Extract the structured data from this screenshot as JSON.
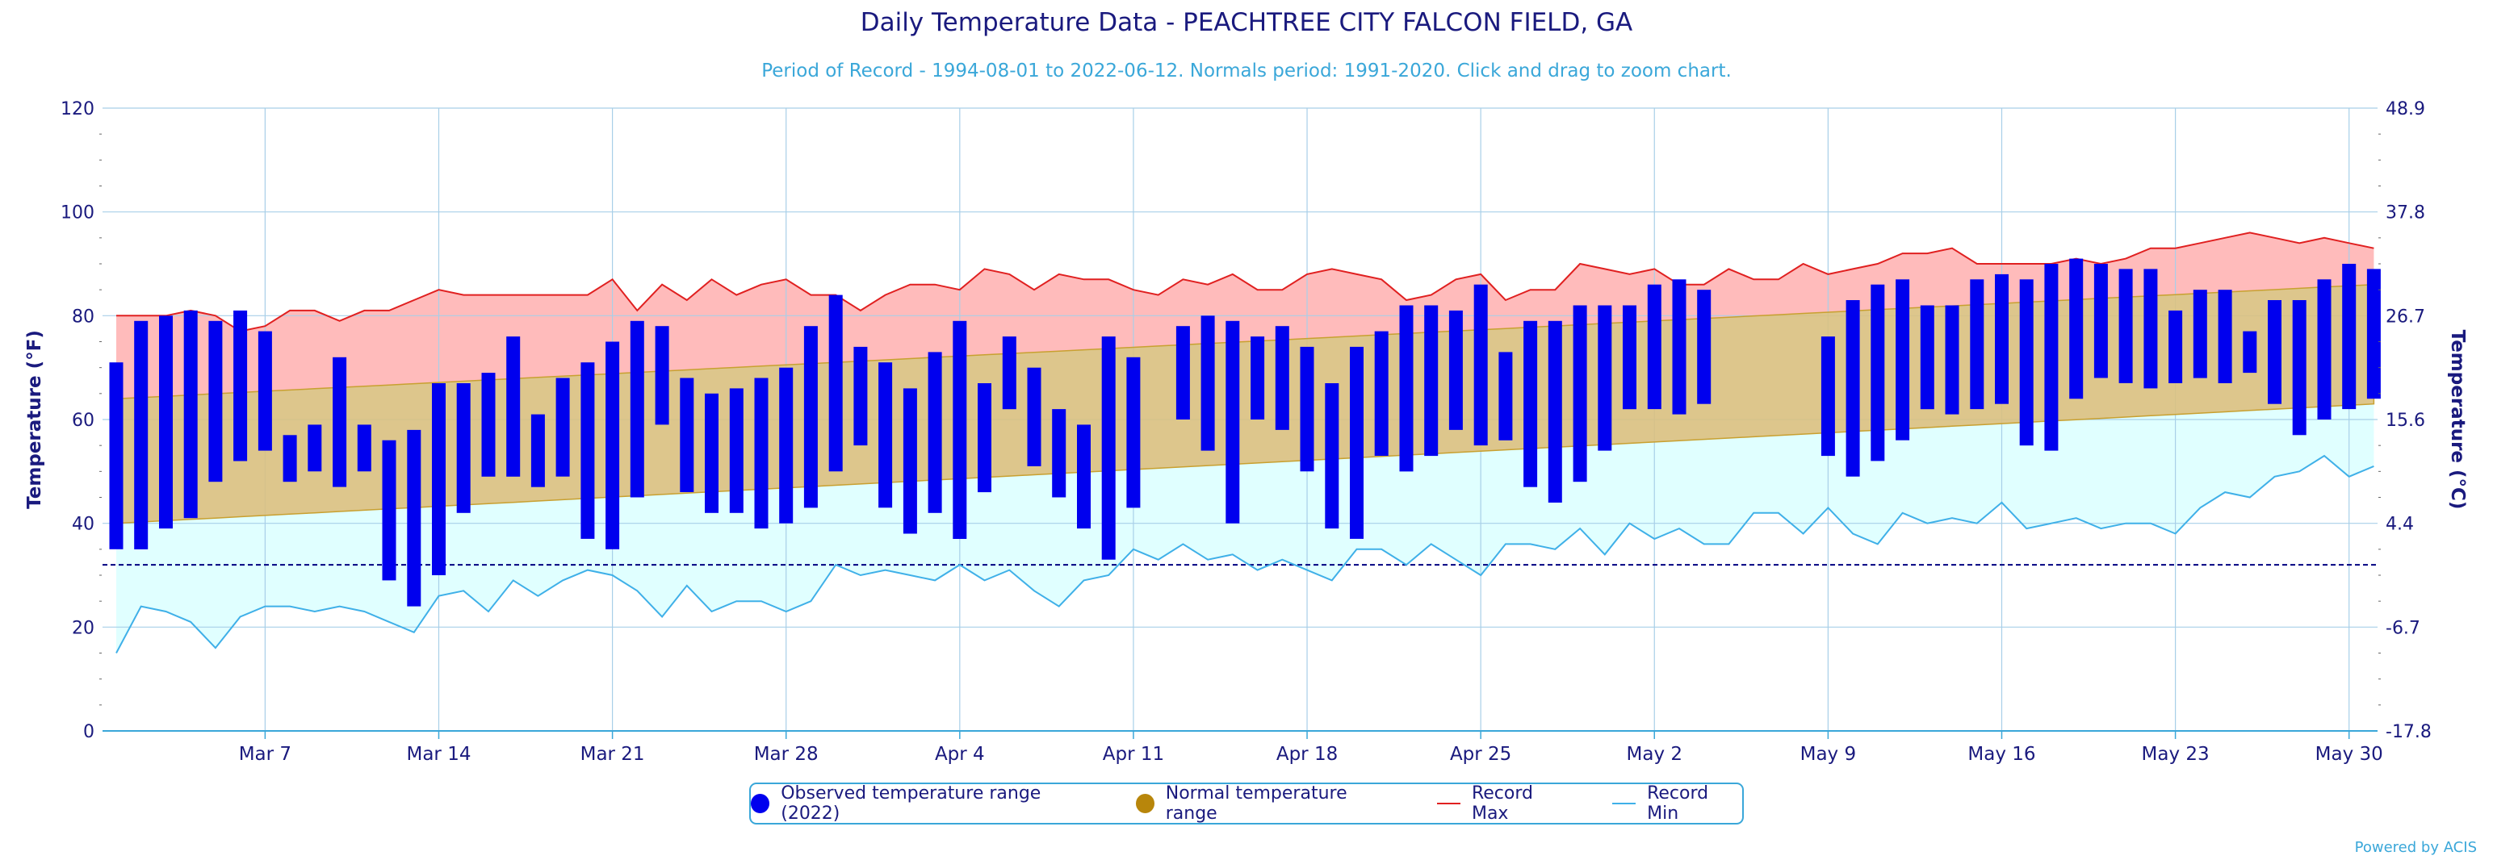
{
  "title": "Daily Temperature Data - PEACHTREE CITY FALCON FIELD, GA",
  "subtitle": "Period of Record - 1994-08-01 to 2022-06-12. Normals period: 1991-2020. Click and drag to zoom chart.",
  "credit": "Powered by ACIS",
  "legend": {
    "observed": "Observed temperature range (2022)",
    "normal": "Normal temperature range",
    "record_max": "Record Max",
    "record_min": "Record Min"
  },
  "colors": {
    "observed": "#0000ee",
    "normal_fill": "#d9c080",
    "normal_legend": "#b8860b",
    "normal_line": "#c8a030",
    "record_max_fill": "#ffbbbb",
    "record_max_line": "#e02020",
    "record_min_fill": "#e0ffff",
    "record_min_line": "#3fb0e8",
    "freezing": "#000080",
    "axis": "#1a1a7e"
  },
  "chart_data": {
    "type": "bar",
    "x_start": "Mar 1",
    "x_end": "May 31",
    "xlabel": "",
    "ylabel": "Temperature (°F)",
    "ylabel_right": "Temperature (°C)",
    "ylim": [
      0,
      120
    ],
    "yticks": [
      0,
      20,
      40,
      60,
      80,
      100,
      120
    ],
    "yticks_right": [
      "-17.8",
      "-6.7",
      "4.4",
      "15.6",
      "26.7",
      "37.8",
      "48.9"
    ],
    "xticks": [
      {
        "day": 7,
        "label": "Mar 7"
      },
      {
        "day": 14,
        "label": "Mar 14"
      },
      {
        "day": 21,
        "label": "Mar 21"
      },
      {
        "day": 28,
        "label": "Mar 28"
      },
      {
        "day": 35,
        "label": "Apr 4"
      },
      {
        "day": 42,
        "label": "Apr 11"
      },
      {
        "day": 49,
        "label": "Apr 18"
      },
      {
        "day": 56,
        "label": "Apr 25"
      },
      {
        "day": 63,
        "label": "May 2"
      },
      {
        "day": 70,
        "label": "May 9"
      },
      {
        "day": 77,
        "label": "May 16"
      },
      {
        "day": 84,
        "label": "May 23"
      },
      {
        "day": 91,
        "label": "May 30"
      }
    ],
    "freezing_line": 32,
    "normal_range": {
      "start_low": 40,
      "start_high": 64,
      "end_low": 63,
      "end_high": 86
    },
    "observed": [
      [
        35,
        71
      ],
      [
        35,
        79
      ],
      [
        39,
        80
      ],
      [
        41,
        81
      ],
      [
        48,
        79
      ],
      [
        52,
        81
      ],
      [
        54,
        77
      ],
      [
        48,
        57
      ],
      [
        50,
        59
      ],
      [
        47,
        72
      ],
      [
        50,
        59
      ],
      [
        29,
        56
      ],
      [
        24,
        58
      ],
      [
        30,
        67
      ],
      [
        42,
        67
      ],
      [
        49,
        69
      ],
      [
        49,
        76
      ],
      [
        47,
        61
      ],
      [
        49,
        68
      ],
      [
        37,
        71
      ],
      [
        35,
        75
      ],
      [
        45,
        79
      ],
      [
        59,
        78
      ],
      [
        46,
        68
      ],
      [
        42,
        65
      ],
      [
        42,
        66
      ],
      [
        39,
        68
      ],
      [
        40,
        70
      ],
      [
        43,
        78
      ],
      [
        50,
        84
      ],
      [
        55,
        74
      ],
      [
        43,
        71
      ],
      [
        38,
        66
      ],
      [
        42,
        73
      ],
      [
        37,
        79
      ],
      [
        46,
        67
      ],
      [
        62,
        76
      ],
      [
        51,
        70
      ],
      [
        45,
        62
      ],
      [
        39,
        59
      ],
      [
        33,
        76
      ],
      [
        43,
        72
      ],
      null,
      [
        60,
        78
      ],
      [
        54,
        80
      ],
      [
        40,
        79
      ],
      [
        60,
        76
      ],
      [
        58,
        78
      ],
      [
        50,
        74
      ],
      [
        39,
        67
      ],
      [
        37,
        74
      ],
      [
        53,
        77
      ],
      [
        50,
        82
      ],
      [
        53,
        82
      ],
      [
        58,
        81
      ],
      [
        55,
        86
      ],
      [
        56,
        73
      ],
      [
        47,
        79
      ],
      [
        44,
        79
      ],
      [
        48,
        82
      ],
      [
        54,
        82
      ],
      [
        62,
        82
      ],
      [
        62,
        86
      ],
      [
        61,
        87
      ],
      [
        63,
        85
      ],
      null,
      null,
      null,
      null,
      [
        53,
        76
      ],
      [
        49,
        83
      ],
      [
        52,
        86
      ],
      [
        56,
        87
      ],
      [
        62,
        82
      ],
      [
        61,
        82
      ],
      [
        62,
        87
      ],
      [
        63,
        88
      ],
      [
        55,
        87
      ],
      [
        54,
        90
      ],
      [
        64,
        91
      ],
      [
        68,
        90
      ],
      [
        67,
        89
      ],
      [
        66,
        89
      ],
      [
        67,
        81
      ],
      [
        68,
        85
      ],
      [
        67,
        85
      ],
      [
        69,
        77
      ],
      [
        63,
        83
      ],
      [
        57,
        83
      ],
      [
        60,
        87
      ],
      [
        62,
        90
      ],
      [
        64,
        89
      ]
    ],
    "record_max": [
      80,
      80,
      80,
      81,
      80,
      77,
      78,
      81,
      81,
      79,
      81,
      81,
      83,
      85,
      84,
      84,
      84,
      84,
      84,
      84,
      87,
      81,
      86,
      83,
      87,
      84,
      86,
      87,
      84,
      84,
      81,
      84,
      86,
      86,
      85,
      89,
      88,
      85,
      88,
      87,
      87,
      85,
      84,
      87,
      86,
      88,
      85,
      85,
      88,
      89,
      88,
      87,
      83,
      84,
      87,
      88,
      83,
      85,
      85,
      90,
      89,
      88,
      89,
      86,
      86,
      89,
      87,
      87,
      90,
      88,
      89,
      90,
      92,
      92,
      93,
      90,
      90,
      90,
      90,
      91,
      90,
      91,
      93,
      93,
      94,
      95,
      96,
      95,
      94,
      95,
      94,
      93
    ],
    "record_min": [
      15,
      24,
      23,
      21,
      16,
      22,
      24,
      24,
      23,
      24,
      23,
      21,
      19,
      26,
      27,
      23,
      29,
      26,
      29,
      31,
      30,
      27,
      22,
      28,
      23,
      25,
      25,
      23,
      25,
      32,
      30,
      31,
      30,
      29,
      32,
      29,
      31,
      27,
      24,
      29,
      30,
      35,
      33,
      36,
      33,
      34,
      31,
      33,
      31,
      29,
      35,
      35,
      32,
      36,
      33,
      30,
      36,
      36,
      35,
      39,
      34,
      40,
      37,
      39,
      36,
      36,
      42,
      42,
      38,
      43,
      38,
      36,
      42,
      40,
      41,
      40,
      44,
      39,
      40,
      41,
      39,
      40,
      40,
      38,
      43,
      46,
      45,
      49,
      50,
      53,
      49,
      51
    ]
  }
}
